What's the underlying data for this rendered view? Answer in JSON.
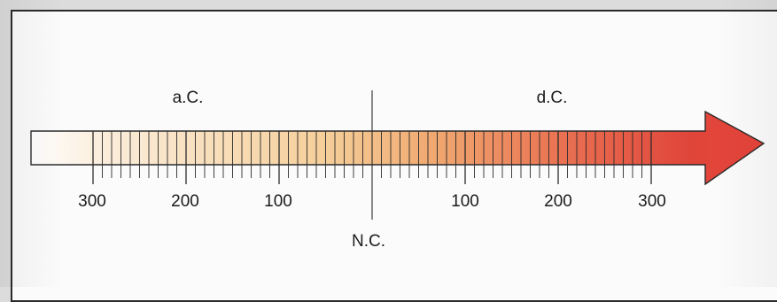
{
  "timeline": {
    "era_before_label": "a.C.",
    "era_after_label": "d.C.",
    "zero_label": "N.C.",
    "tick_labels_before": [
      "300",
      "200",
      "100"
    ],
    "tick_labels_after": [
      "100",
      "200",
      "300"
    ],
    "tick_values_before": [
      300,
      200,
      100
    ],
    "tick_values_after": [
      100,
      200,
      300
    ],
    "minor_tick_interval_years": 10,
    "range_years": [
      -300,
      300
    ],
    "gradient_colors": [
      "#ffffff",
      "#fbeedd",
      "#f5cf9a",
      "#f0a870",
      "#e86a4e",
      "#e0453a",
      "#e6443a"
    ],
    "outline_color": "#2b2b2b"
  }
}
